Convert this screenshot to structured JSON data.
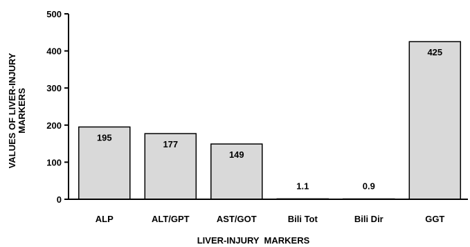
{
  "chart_data": {
    "type": "bar",
    "categories": [
      "ALP",
      "ALT/GPT",
      "AST/GOT",
      "Bili Tot",
      "Bili Dir",
      "GGT"
    ],
    "values": [
      195,
      177,
      149,
      1.1,
      0.9,
      425
    ],
    "data_labels": [
      "195",
      "177",
      "149",
      "1.1",
      "0.9",
      "425"
    ],
    "title": "",
    "xlabel": "LIVER-INJURY  MARKERS",
    "ylabel_lines": [
      "VALUES OF LIVER-INJURY",
      "MARKERS"
    ],
    "ylim": [
      0,
      500
    ],
    "yticks": [
      0,
      100,
      200,
      300,
      400,
      500
    ],
    "grid": false,
    "bar_color": "#d9d9d9",
    "edge_color": "#000000"
  }
}
